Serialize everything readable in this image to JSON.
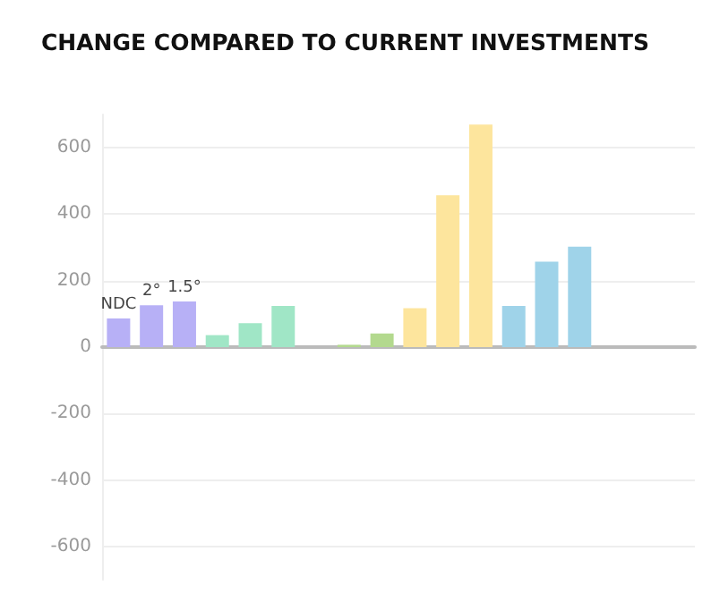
{
  "chart_data": {
    "type": "bar",
    "title": "CHANGE COMPARED TO CURRENT INVESTMENTS",
    "categories": [
      null,
      null,
      null,
      null,
      null,
      null,
      null,
      null,
      null,
      null,
      null,
      null,
      null,
      null,
      null,
      null,
      null,
      null
    ],
    "values": [
      86,
      126,
      137,
      36,
      72,
      124,
      null,
      7,
      41,
      117,
      457,
      670,
      124,
      257,
      302,
      null,
      null,
      null
    ],
    "colors": [
      "#b7b0f6",
      "#b7b0f6",
      "#b7b0f6",
      "#a0e6c6",
      "#a0e6c6",
      "#a0e6c6",
      "#cccccc",
      "#b3d98e",
      "#b3d98e",
      "#fde59d",
      "#fde59d",
      "#fde59d",
      "#9fd3e9",
      "#9fd3e9",
      "#9fd3e9",
      "#cccccc",
      "#cccccc",
      "#cccccc"
    ],
    "annotations": [
      {
        "text": "NDC",
        "y": 86
      },
      {
        "text": "2°",
        "y": 126
      },
      {
        "text": "1.5°",
        "y": 137
      }
    ],
    "ylim": [
      -700,
      700
    ],
    "yticks": [
      -600,
      -400,
      -200,
      0,
      200,
      400,
      600
    ],
    "grid": "y",
    "tick_labels": "y"
  }
}
